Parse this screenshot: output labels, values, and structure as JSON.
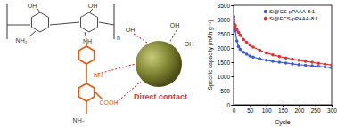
{
  "chart_data": {
    "type": "line",
    "x_label": "Cycle",
    "y_label": "Specific capacity (mAh g⁻¹)",
    "x": [
      1,
      5,
      10,
      15,
      20,
      30,
      40,
      50,
      60,
      80,
      100,
      120,
      140,
      160,
      180,
      200,
      220,
      240,
      260,
      280,
      300
    ],
    "series": [
      {
        "name": "Si@CS-pPAAA-8:1",
        "color": "#3b5bdb",
        "marker": "circle",
        "values": [
          3100,
          2600,
          2250,
          2050,
          1950,
          1850,
          1780,
          1720,
          1680,
          1620,
          1570,
          1530,
          1500,
          1470,
          1440,
          1410,
          1390,
          1370,
          1350,
          1330,
          1300
        ]
      },
      {
        "name": "Si@ECS-pPAAA-8:1",
        "color": "#e03131",
        "marker": "circle",
        "values": [
          3000,
          2800,
          2650,
          2550,
          2450,
          2300,
          2200,
          2100,
          2030,
          1920,
          1830,
          1760,
          1700,
          1650,
          1610,
          1570,
          1530,
          1500,
          1460,
          1430,
          1400
        ]
      }
    ],
    "xlim": [
      0,
      300
    ],
    "xticks": [
      0,
      50,
      100,
      150,
      200,
      250,
      300
    ],
    "ylim": [
      0,
      3500
    ],
    "yticks": [
      0,
      500,
      1000,
      1500,
      2000,
      2500,
      3000,
      3500
    ],
    "legend": "upper right",
    "grid": false
  },
  "diagram": {
    "labels": [
      "OH",
      "OH",
      "NH₂",
      "NH",
      "OH",
      "OH",
      "OH",
      "NH",
      "COOH",
      "NH₂",
      "n",
      "Direct contact"
    ]
  }
}
